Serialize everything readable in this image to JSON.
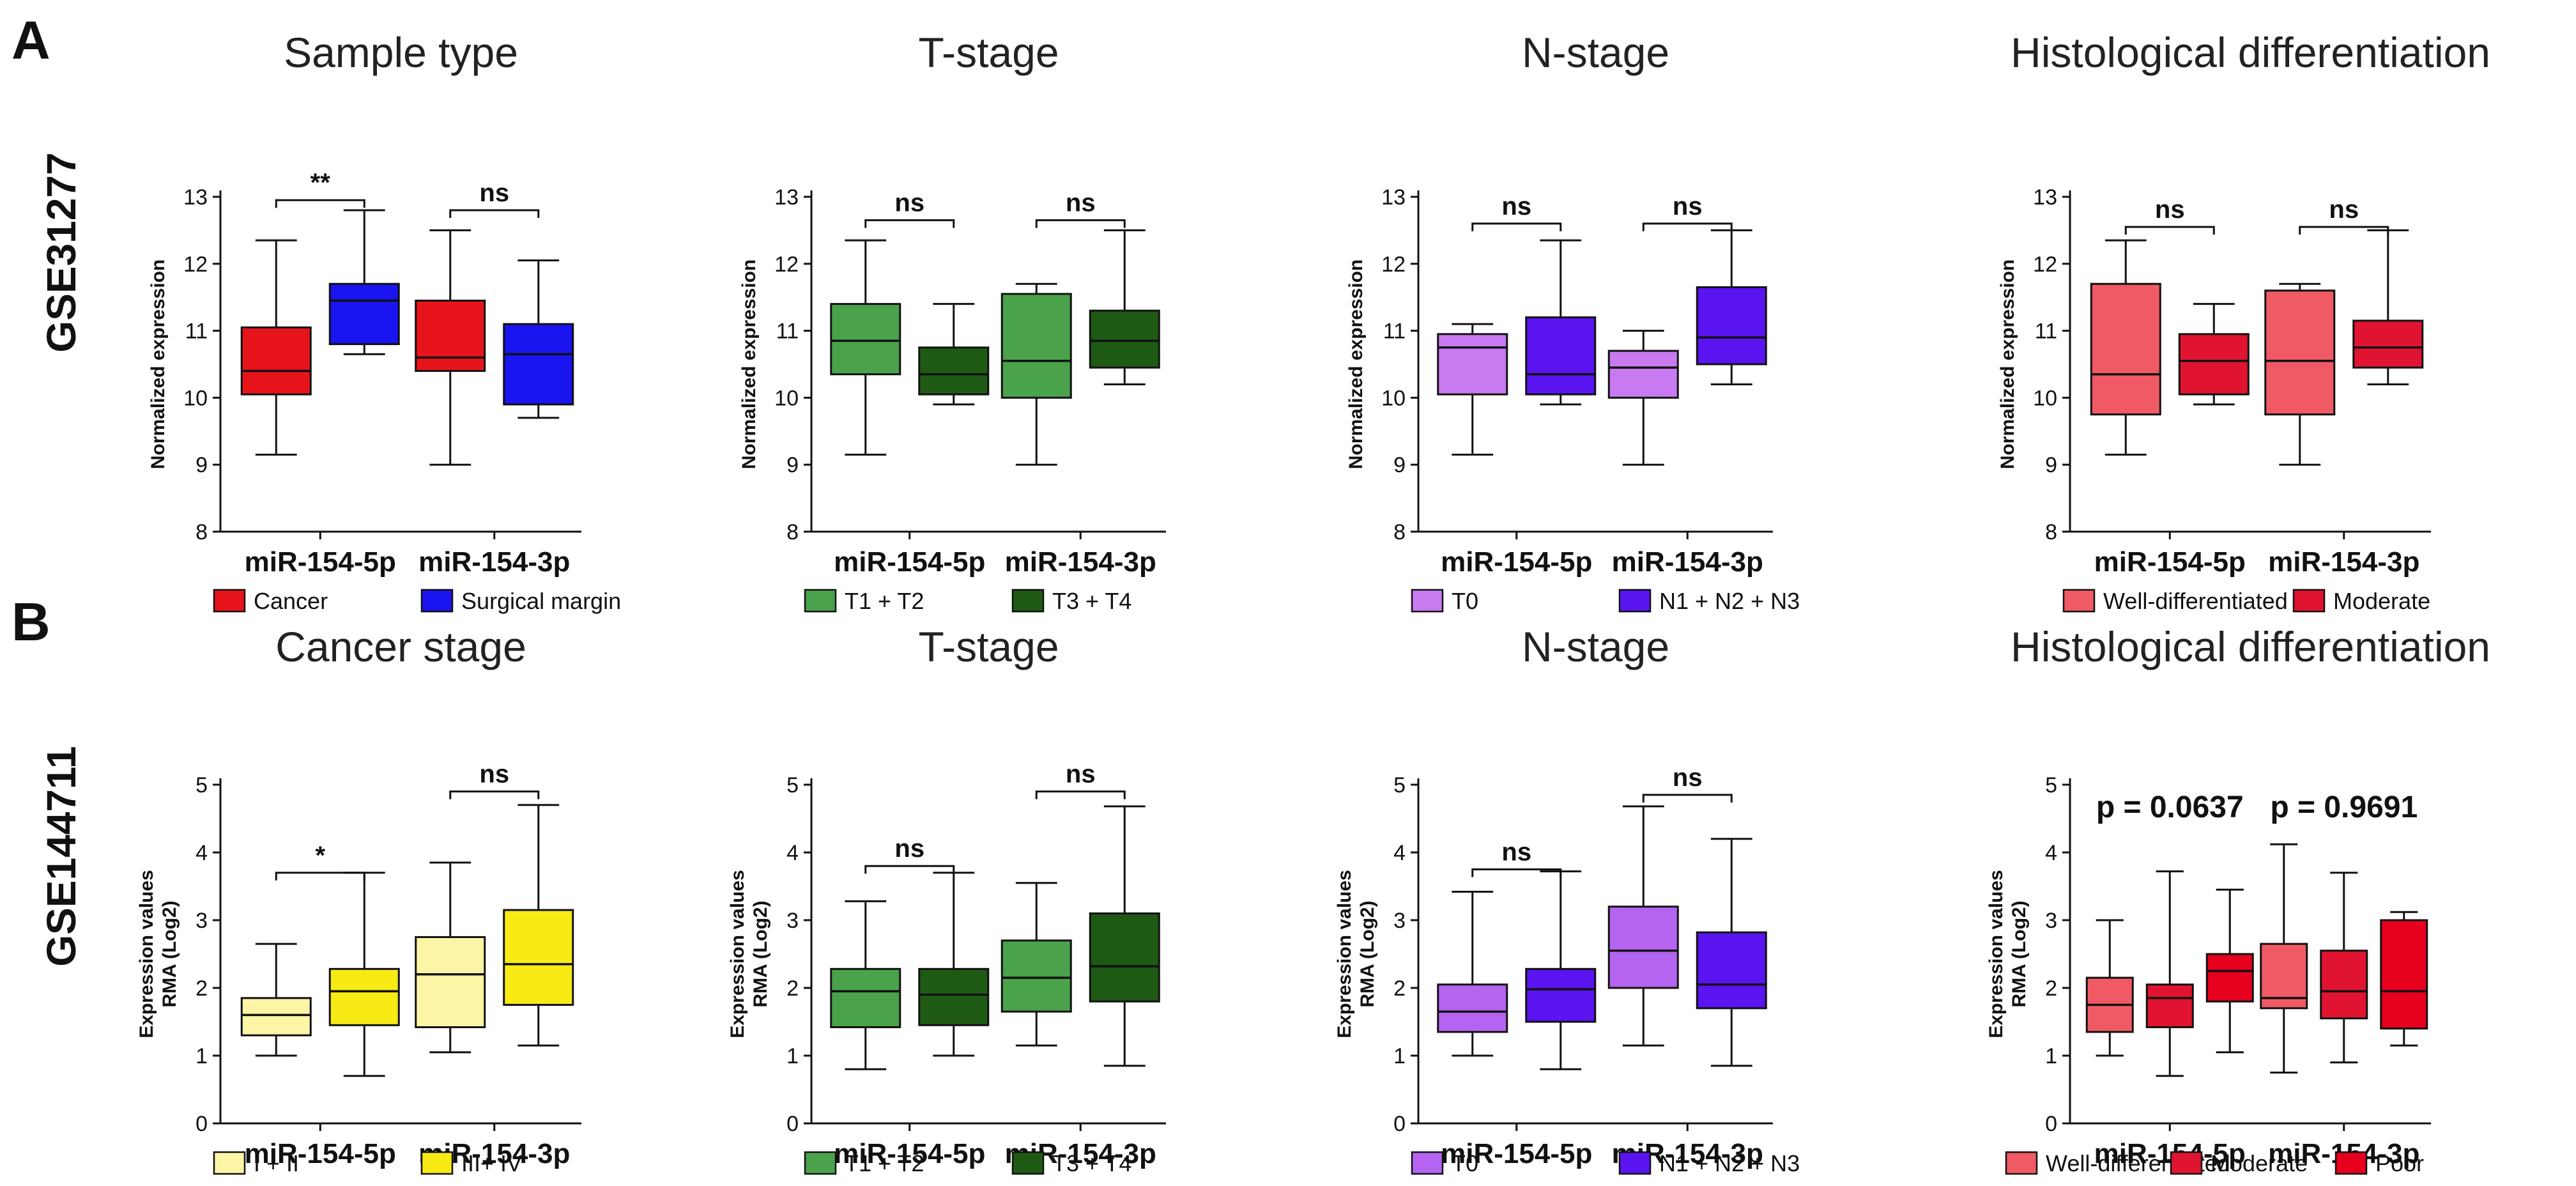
{
  "figure": {
    "rows": [
      {
        "letter": "A",
        "dataset": "GSE31277"
      },
      {
        "letter": "B",
        "dataset": "GSE144711"
      }
    ]
  },
  "chart_data": [
    {
      "type": "box",
      "row": 0,
      "col": 0,
      "title": "Sample type",
      "ylabel": [
        "Normalized expression"
      ],
      "ylim": [
        8,
        13
      ],
      "yticks": [
        8,
        9,
        10,
        11,
        12,
        13
      ],
      "categories": [
        "miR-154-5p",
        "miR-154-3p"
      ],
      "series": [
        {
          "name": "Cancer",
          "color": "#e8141c",
          "boxes": [
            {
              "min": 9.15,
              "q1": 10.05,
              "median": 10.4,
              "q3": 11.05,
              "max": 12.35
            },
            {
              "min": 9.0,
              "q1": 10.4,
              "median": 10.6,
              "q3": 11.45,
              "max": 12.5
            }
          ]
        },
        {
          "name": "Surgical margin",
          "color": "#1a14f0",
          "boxes": [
            {
              "min": 10.65,
              "q1": 10.8,
              "median": 11.45,
              "q3": 11.7,
              "max": 12.8
            },
            {
              "min": 9.7,
              "q1": 9.9,
              "median": 10.65,
              "q3": 11.1,
              "max": 12.05
            }
          ]
        }
      ],
      "annotations": [
        {
          "text": "**",
          "category": 0,
          "y": 12.95
        },
        {
          "text": "ns",
          "category": 1,
          "y": 12.8
        }
      ]
    },
    {
      "type": "box",
      "row": 0,
      "col": 1,
      "title": "T-stage",
      "ylabel": [
        "Normalized expression"
      ],
      "ylim": [
        8,
        13
      ],
      "yticks": [
        8,
        9,
        10,
        11,
        12,
        13
      ],
      "categories": [
        "miR-154-5p",
        "miR-154-3p"
      ],
      "series": [
        {
          "name": "T1 + T2",
          "color": "#4aa24a",
          "boxes": [
            {
              "min": 9.15,
              "q1": 10.35,
              "median": 10.85,
              "q3": 11.4,
              "max": 12.35
            },
            {
              "min": 9.0,
              "q1": 10.0,
              "median": 10.55,
              "q3": 11.55,
              "max": 11.7
            }
          ]
        },
        {
          "name": "T3 + T4",
          "color": "#1e5a14",
          "boxes": [
            {
              "min": 9.9,
              "q1": 10.05,
              "median": 10.35,
              "q3": 10.75,
              "max": 11.4
            },
            {
              "min": 10.2,
              "q1": 10.45,
              "median": 10.85,
              "q3": 11.3,
              "max": 12.5
            }
          ]
        }
      ],
      "annotations": [
        {
          "text": "ns",
          "category": 0,
          "y": 12.65
        },
        {
          "text": "ns",
          "category": 1,
          "y": 12.65
        }
      ]
    },
    {
      "type": "box",
      "row": 0,
      "col": 2,
      "title": "N-stage",
      "ylabel": [
        "Normalized expression"
      ],
      "ylim": [
        8,
        13
      ],
      "yticks": [
        8,
        9,
        10,
        11,
        12,
        13
      ],
      "categories": [
        "miR-154-5p",
        "miR-154-3p"
      ],
      "series": [
        {
          "name": "T0",
          "color": "#c87af0",
          "boxes": [
            {
              "min": 9.15,
              "q1": 10.05,
              "median": 10.75,
              "q3": 10.95,
              "max": 11.1
            },
            {
              "min": 9.0,
              "q1": 10.0,
              "median": 10.45,
              "q3": 10.7,
              "max": 11.0
            }
          ]
        },
        {
          "name": "N1 + N2 + N3",
          "color": "#5a14f0",
          "boxes": [
            {
              "min": 9.9,
              "q1": 10.05,
              "median": 10.35,
              "q3": 11.2,
              "max": 12.35
            },
            {
              "min": 10.2,
              "q1": 10.5,
              "median": 10.9,
              "q3": 11.65,
              "max": 12.5
            }
          ]
        }
      ],
      "annotations": [
        {
          "text": "ns",
          "category": 0,
          "y": 12.6
        },
        {
          "text": "ns",
          "category": 1,
          "y": 12.6
        }
      ]
    },
    {
      "type": "box",
      "row": 0,
      "col": 3,
      "title": "Histological differentiation",
      "ylabel": [
        "Normalized expression"
      ],
      "ylim": [
        8,
        13
      ],
      "yticks": [
        8,
        9,
        10,
        11,
        12,
        13
      ],
      "categories": [
        "miR-154-5p",
        "miR-154-3p"
      ],
      "series": [
        {
          "name": "Well-differentiated",
          "color": "#f05a64",
          "boxes": [
            {
              "min": 9.15,
              "q1": 9.75,
              "median": 10.35,
              "q3": 11.7,
              "max": 12.35
            },
            {
              "min": 9.0,
              "q1": 9.75,
              "median": 10.55,
              "q3": 11.6,
              "max": 11.7
            }
          ]
        },
        {
          "name": "Moderate",
          "color": "#e01430",
          "boxes": [
            {
              "min": 9.9,
              "q1": 10.05,
              "median": 10.55,
              "q3": 10.95,
              "max": 11.4
            },
            {
              "min": 10.2,
              "q1": 10.45,
              "median": 10.75,
              "q3": 11.15,
              "max": 12.5
            }
          ]
        }
      ],
      "annotations": [
        {
          "text": "ns",
          "category": 0,
          "y": 12.55
        },
        {
          "text": "ns",
          "category": 1,
          "y": 12.55
        }
      ]
    },
    {
      "type": "box",
      "row": 1,
      "col": 0,
      "title": "Cancer stage",
      "ylabel": [
        "Expression values",
        "RMA (Log2)"
      ],
      "ylim": [
        0,
        5
      ],
      "yticks": [
        0,
        1,
        2,
        3,
        4,
        5
      ],
      "categories": [
        "miR-154-5p",
        "miR-154-3p"
      ],
      "series": [
        {
          "name": "I + II",
          "color": "#fdf5a6",
          "boxes": [
            {
              "min": 1.0,
              "q1": 1.3,
              "median": 1.6,
              "q3": 1.85,
              "max": 2.65
            },
            {
              "min": 1.05,
              "q1": 1.42,
              "median": 2.2,
              "q3": 2.75,
              "max": 3.85
            }
          ]
        },
        {
          "name": "III+ IV",
          "color": "#f8ea14",
          "boxes": [
            {
              "min": 0.7,
              "q1": 1.45,
              "median": 1.95,
              "q3": 2.28,
              "max": 3.7
            },
            {
              "min": 1.15,
              "q1": 1.75,
              "median": 2.35,
              "q3": 3.15,
              "max": 4.7
            }
          ]
        }
      ],
      "annotations": [
        {
          "text": "*",
          "category": 0,
          "y": 3.7
        },
        {
          "text": "ns",
          "category": 1,
          "y": 4.9
        }
      ]
    },
    {
      "type": "box",
      "row": 1,
      "col": 1,
      "title": "T-stage",
      "ylabel": [
        "Expression values",
        "RMA (Log2)"
      ],
      "ylim": [
        0,
        5
      ],
      "yticks": [
        0,
        1,
        2,
        3,
        4,
        5
      ],
      "categories": [
        "miR-154-5p",
        "miR-154-3p"
      ],
      "series": [
        {
          "name": "T1 + T2",
          "color": "#4aa24a",
          "boxes": [
            {
              "min": 0.8,
              "q1": 1.42,
              "median": 1.95,
              "q3": 2.28,
              "max": 3.28
            },
            {
              "min": 1.15,
              "q1": 1.65,
              "median": 2.15,
              "q3": 2.7,
              "max": 3.55
            }
          ]
        },
        {
          "name": "T3 + T4",
          "color": "#1e5a14",
          "boxes": [
            {
              "min": 1.0,
              "q1": 1.45,
              "median": 1.9,
              "q3": 2.28,
              "max": 3.7
            },
            {
              "min": 0.85,
              "q1": 1.8,
              "median": 2.32,
              "q3": 3.1,
              "max": 4.68
            }
          ]
        }
      ],
      "annotations": [
        {
          "text": "ns",
          "category": 0,
          "y": 3.8
        },
        {
          "text": "ns",
          "category": 1,
          "y": 4.9
        }
      ]
    },
    {
      "type": "box",
      "row": 1,
      "col": 2,
      "title": "N-stage",
      "ylabel": [
        "Expression values",
        "RMA (Log2)"
      ],
      "ylim": [
        0,
        5
      ],
      "yticks": [
        0,
        1,
        2,
        3,
        4,
        5
      ],
      "categories": [
        "miR-154-5p",
        "miR-154-3p"
      ],
      "series": [
        {
          "name": "T0",
          "color": "#b464f0",
          "boxes": [
            {
              "min": 1.0,
              "q1": 1.35,
              "median": 1.65,
              "q3": 2.05,
              "max": 3.42
            },
            {
              "min": 1.15,
              "q1": 2.0,
              "median": 2.55,
              "q3": 3.2,
              "max": 4.68
            }
          ]
        },
        {
          "name": "N1 + N2 + N3",
          "color": "#5a14f0",
          "boxes": [
            {
              "min": 0.8,
              "q1": 1.5,
              "median": 1.98,
              "q3": 2.28,
              "max": 3.72
            },
            {
              "min": 0.85,
              "q1": 1.7,
              "median": 2.05,
              "q3": 2.82,
              "max": 4.2
            }
          ]
        }
      ],
      "annotations": [
        {
          "text": "ns",
          "category": 0,
          "y": 3.75
        },
        {
          "text": "ns",
          "category": 1,
          "y": 4.85
        }
      ]
    },
    {
      "type": "box",
      "row": 1,
      "col": 3,
      "title": "Histological differentiation",
      "ylabel": [
        "Expression values",
        "RMA (Log2)"
      ],
      "ylim": [
        0,
        5
      ],
      "yticks": [
        0,
        1,
        2,
        3,
        4,
        5
      ],
      "categories": [
        "miR-154-5p",
        "miR-154-3p"
      ],
      "series": [
        {
          "name": "Well-differentiated",
          "color": "#f05a64",
          "boxes": [
            {
              "min": 1.0,
              "q1": 1.35,
              "median": 1.75,
              "q3": 2.15,
              "max": 3.0
            },
            {
              "min": 0.75,
              "q1": 1.7,
              "median": 1.85,
              "q3": 2.65,
              "max": 4.12
            }
          ]
        },
        {
          "name": "Moderate",
          "color": "#e01430",
          "boxes": [
            {
              "min": 0.7,
              "q1": 1.42,
              "median": 1.85,
              "q3": 2.05,
              "max": 3.72
            },
            {
              "min": 0.9,
              "q1": 1.55,
              "median": 1.95,
              "q3": 2.55,
              "max": 3.7
            }
          ]
        },
        {
          "name": "Poor",
          "color": "#e6001e",
          "boxes": [
            {
              "min": 1.05,
              "q1": 1.8,
              "median": 2.25,
              "q3": 2.5,
              "max": 3.45
            },
            {
              "min": 1.15,
              "q1": 1.4,
              "median": 1.95,
              "q3": 3.0,
              "max": 3.12
            }
          ]
        }
      ],
      "pvalues": [
        {
          "text": "p = 0.0637",
          "category": 0
        },
        {
          "text": "p = 0.9691",
          "category": 1
        }
      ]
    }
  ]
}
